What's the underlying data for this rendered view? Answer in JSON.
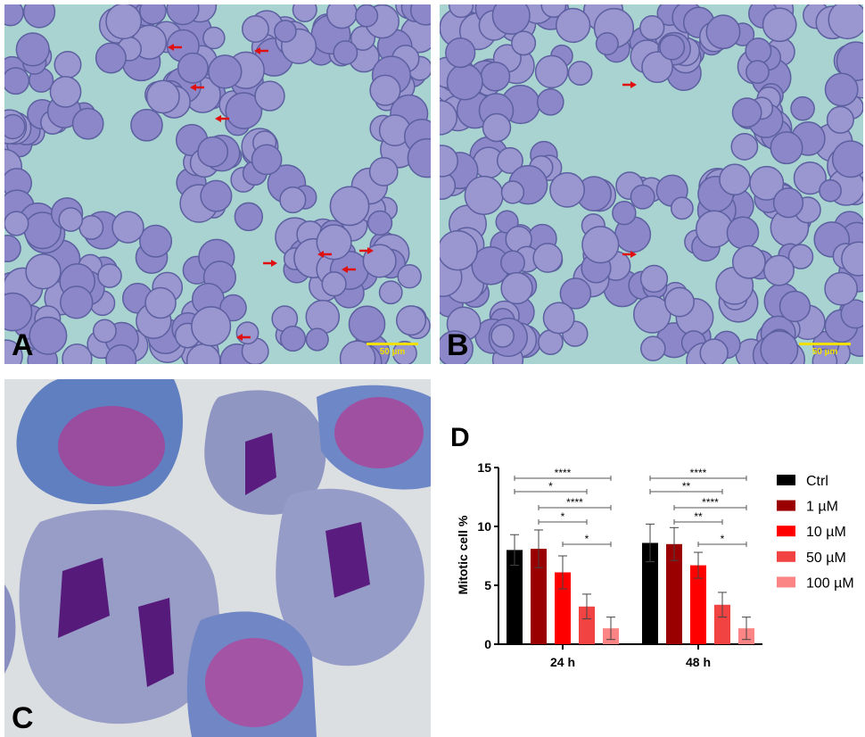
{
  "panels": {
    "a": {
      "label": "A",
      "scale_bar": "50 µm"
    },
    "b": {
      "label": "B",
      "scale_bar": "50 µm"
    },
    "c": {
      "label": "C"
    },
    "d": {
      "label": "D"
    }
  },
  "chart_data": {
    "type": "bar",
    "title": "",
    "xlabel": "",
    "ylabel": "Mitotic cell %",
    "ylim": [
      0,
      15
    ],
    "yticks": [
      0,
      5,
      10,
      15
    ],
    "categories": [
      "24 h",
      "48 h"
    ],
    "legend_position": "right",
    "series": [
      {
        "name": "Ctrl",
        "color": "#000000",
        "values": [
          8.0,
          8.6
        ],
        "errors": [
          1.3,
          1.6
        ]
      },
      {
        "name": "1 µM",
        "color": "#9b0000",
        "values": [
          8.1,
          8.5
        ],
        "errors": [
          1.6,
          1.4
        ]
      },
      {
        "name": "10 µM",
        "color": "#ff0000",
        "values": [
          6.1,
          6.7
        ],
        "errors": [
          1.4,
          1.1
        ]
      },
      {
        "name": "50 µM",
        "color": "#f24343",
        "values": [
          3.2,
          3.35
        ],
        "errors": [
          1.05,
          1.05
        ]
      },
      {
        "name": "100 µM",
        "color": "#fb8585",
        "values": [
          1.35,
          1.35
        ],
        "errors": [
          0.95,
          0.95
        ]
      }
    ],
    "significance": [
      [
        {
          "from": 0,
          "to": 4,
          "label": "****"
        },
        {
          "from": 0,
          "to": 3,
          "label": "*"
        },
        {
          "from": 1,
          "to": 4,
          "label": "****"
        },
        {
          "from": 1,
          "to": 3,
          "label": "*"
        },
        {
          "from": 2,
          "to": 4,
          "label": "*"
        }
      ],
      [
        {
          "from": 0,
          "to": 4,
          "label": "****"
        },
        {
          "from": 0,
          "to": 3,
          "label": "**"
        },
        {
          "from": 1,
          "to": 4,
          "label": "****"
        },
        {
          "from": 1,
          "to": 3,
          "label": "**"
        },
        {
          "from": 2,
          "to": 4,
          "label": "*"
        }
      ]
    ]
  }
}
